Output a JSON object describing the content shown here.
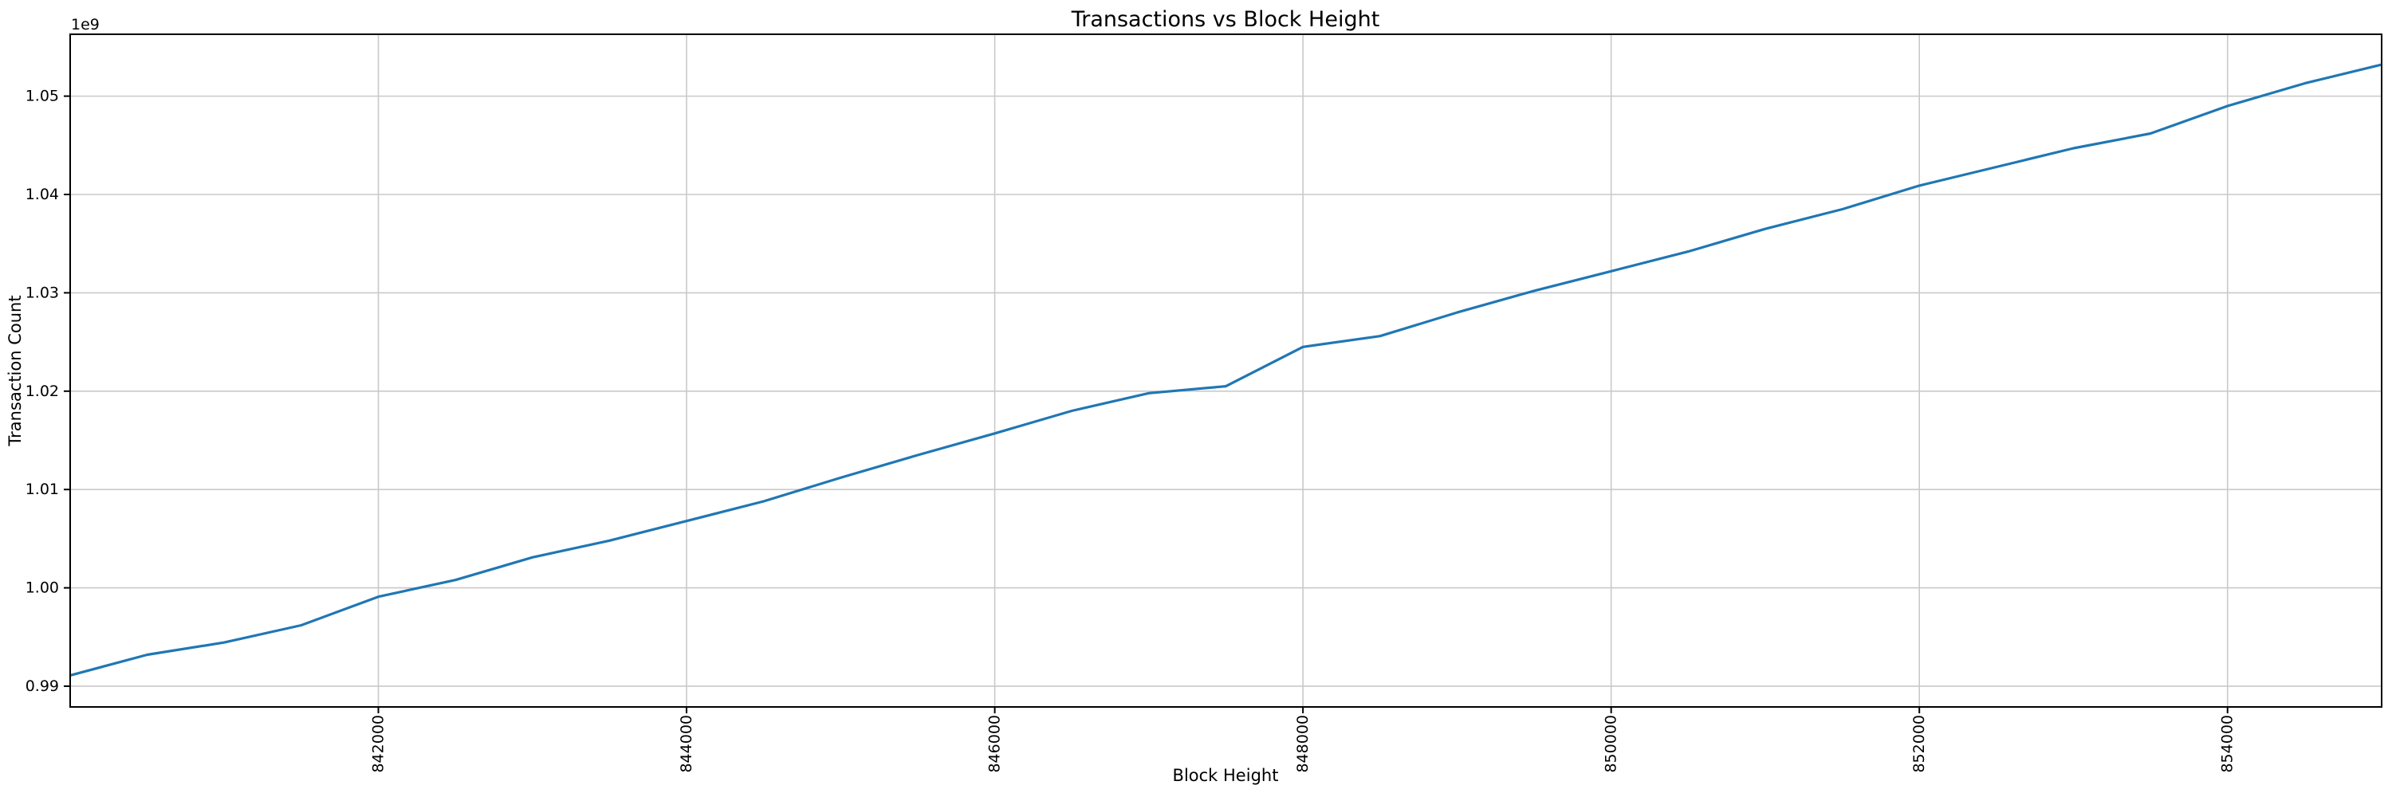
{
  "figure": {
    "background": "#ffffff",
    "line_color": "#1f77b4",
    "grid_color": "#c9c9c9",
    "spine_color": "#000000",
    "text_color": "#000000"
  },
  "chart_data": {
    "type": "line",
    "title": "Transactions vs Block Height",
    "xlabel": "Block Height",
    "ylabel": "Transaction Count",
    "y_offset_label": "1e9",
    "grid": true,
    "legend": "none",
    "xlim": [
      840000,
      855000
    ],
    "ylim": [
      987890000,
      1056290000
    ],
    "x_ticks": [
      842000,
      844000,
      846000,
      848000,
      850000,
      852000,
      854000
    ],
    "x_tick_labels": [
      "842000",
      "844000",
      "846000",
      "848000",
      "850000",
      "852000",
      "854000"
    ],
    "x_tick_rotation": 90,
    "y_ticks": [
      0.99,
      1.0,
      1.01,
      1.02,
      1.03,
      1.04,
      1.05
    ],
    "y_tick_labels": [
      "0.99",
      "1.00",
      "1.01",
      "1.02",
      "1.03",
      "1.04",
      "1.05"
    ],
    "series": [
      {
        "name": "Transaction Count",
        "x": [
          840000,
          840500,
          841000,
          841500,
          842000,
          842500,
          843000,
          843500,
          844000,
          844500,
          845000,
          845500,
          846000,
          846500,
          847000,
          847500,
          848000,
          848500,
          849000,
          849500,
          850000,
          850500,
          851000,
          851500,
          852000,
          852500,
          853000,
          853500,
          854000,
          854500,
          855000
        ],
        "y": [
          991100000,
          993200000,
          994450000,
          996200000,
          999100000,
          1000800000,
          1003100000,
          1004800000,
          1006800000,
          1008800000,
          1011200000,
          1013500000,
          1015700000,
          1018000000,
          1019800000,
          1020500000,
          1024500000,
          1025600000,
          1028000000,
          1030200000,
          1032200000,
          1034200000,
          1036500000,
          1038500000,
          1040900000,
          1042800000,
          1044700000,
          1046200000,
          1049000000,
          1051300000,
          1053200000
        ]
      }
    ]
  }
}
